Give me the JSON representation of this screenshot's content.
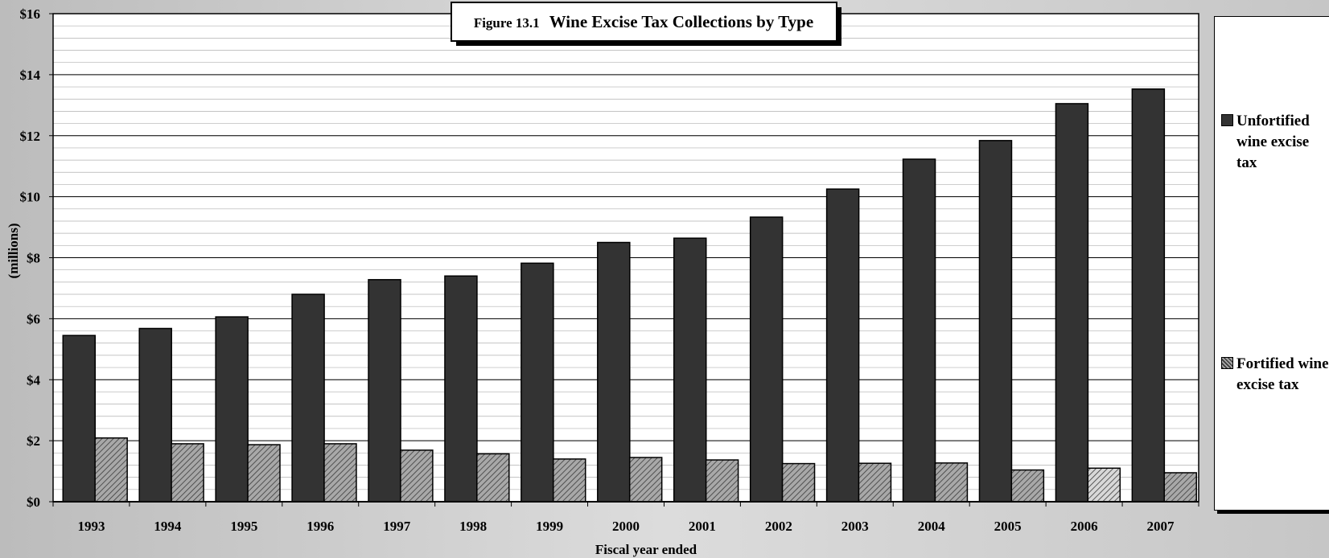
{
  "chart_data": {
    "type": "bar",
    "title_prefix": "Figure 13.1",
    "title": "Wine Excise Tax Collections by Type",
    "xlabel": "Fiscal year ended",
    "ylabel": "(millions)",
    "ylim": [
      0,
      16
    ],
    "y_tick_values": [
      0,
      2,
      4,
      6,
      8,
      10,
      12,
      14,
      16
    ],
    "y_tick_labels": [
      "$0",
      "$2",
      "$4",
      "$6",
      "$8",
      "$10",
      "$12",
      "$14",
      "$16"
    ],
    "minor_grid_step": 0.4,
    "grid": true,
    "legend_position": "right",
    "categories": [
      "1993",
      "1994",
      "1995",
      "1996",
      "1997",
      "1998",
      "1999",
      "2000",
      "2001",
      "2002",
      "2003",
      "2004",
      "2005",
      "2006",
      "2007"
    ],
    "series": [
      {
        "name": "Unfortified wine excise tax",
        "color": "#333333",
        "pattern": "solid",
        "values": [
          5.45,
          5.68,
          6.06,
          6.8,
          7.28,
          7.4,
          7.82,
          8.5,
          8.64,
          9.33,
          10.25,
          11.23,
          11.84,
          13.05,
          13.53
        ]
      },
      {
        "name": "Fortified wine excise tax",
        "color": "#aaaaaa",
        "pattern": "hatch",
        "values": [
          2.09,
          1.9,
          1.87,
          1.9,
          1.69,
          1.57,
          1.4,
          1.45,
          1.37,
          1.25,
          1.26,
          1.27,
          1.04,
          1.1,
          0.95
        ]
      }
    ]
  },
  "legend": {
    "unfortified_label": "Unfortified wine excise tax",
    "fortified_label": "Fortified wine excise tax"
  }
}
